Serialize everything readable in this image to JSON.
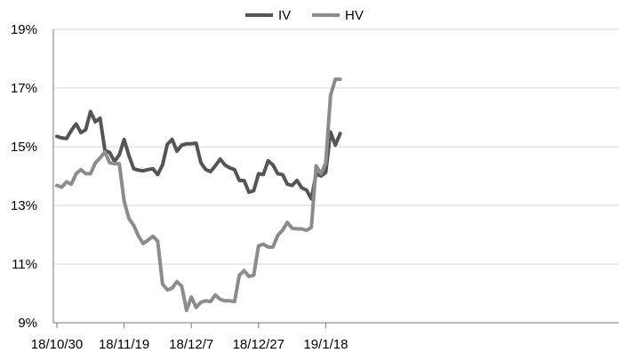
{
  "chart_data": {
    "type": "line",
    "title": "",
    "xlabel": "",
    "ylabel": "",
    "x_start": "18/10/30",
    "x_tick_labels": [
      "18/10/30",
      "18/11/19",
      "18/12/7",
      "18/12/27",
      "19/1/18"
    ],
    "x_tick_index": [
      0,
      14,
      28,
      42,
      56
    ],
    "y_tick_labels": [
      "9%",
      "11%",
      "13%",
      "15%",
      "17%",
      "19%"
    ],
    "ylim": [
      9,
      19
    ],
    "y_unit": "%",
    "grid": "horizontal",
    "legend_position": "top-center",
    "series": [
      {
        "name": "IV",
        "color": "#555555",
        "values": [
          15.35,
          15.3,
          15.28,
          15.55,
          15.78,
          15.48,
          15.58,
          16.2,
          15.85,
          15.97,
          14.88,
          14.8,
          14.5,
          14.72,
          15.25,
          14.7,
          14.25,
          14.2,
          14.18,
          14.22,
          14.25,
          14.05,
          14.38,
          15.08,
          15.25,
          14.85,
          15.05,
          15.1,
          15.1,
          15.12,
          14.45,
          14.22,
          14.15,
          14.35,
          14.58,
          14.38,
          14.28,
          14.22,
          13.85,
          13.85,
          13.45,
          13.5,
          14.08,
          14.05,
          14.52,
          14.38,
          14.08,
          14.05,
          13.72,
          13.68,
          13.85,
          13.6,
          13.52,
          13.22,
          14.08,
          14.0,
          14.12,
          15.5,
          15.05,
          15.45
        ]
      },
      {
        "name": "HV",
        "color": "#8c8c8c",
        "values": [
          13.68,
          13.62,
          13.8,
          13.72,
          14.08,
          14.22,
          14.08,
          14.08,
          14.45,
          14.62,
          14.82,
          14.45,
          14.42,
          14.42,
          13.15,
          12.55,
          12.32,
          11.95,
          11.7,
          11.82,
          11.95,
          11.78,
          10.32,
          10.12,
          10.18,
          10.4,
          10.25,
          9.42,
          9.88,
          9.52,
          9.7,
          9.75,
          9.72,
          9.95,
          9.8,
          9.75,
          9.75,
          9.72,
          10.62,
          10.78,
          10.58,
          10.62,
          11.62,
          11.68,
          11.58,
          11.58,
          11.98,
          12.15,
          12.42,
          12.22,
          12.2,
          12.2,
          12.15,
          12.25,
          14.35,
          14.08,
          14.45,
          16.75,
          17.3,
          17.3
        ]
      }
    ]
  }
}
